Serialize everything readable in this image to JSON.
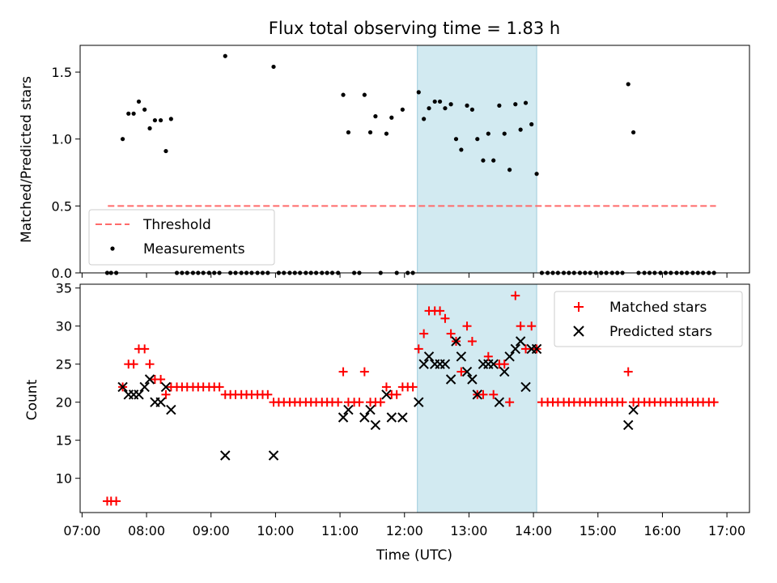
{
  "chart_data": {
    "title": "Flux total observing time = 1.83 h",
    "xlabel": "Time (UTC)",
    "x_units": "hours UTC (decimal)",
    "xlim": [
      6.97,
      17.35
    ],
    "xticks": [
      7,
      8,
      9,
      10,
      11,
      12,
      13,
      14,
      15,
      16,
      17
    ],
    "xtick_labels": [
      "07:00",
      "08:00",
      "09:00",
      "10:00",
      "11:00",
      "12:00",
      "13:00",
      "14:00",
      "15:00",
      "16:00",
      "17:00"
    ],
    "shaded_interval": [
      12.2,
      14.05
    ],
    "shade_color": "#add8e6",
    "top": {
      "type": "scatter",
      "ylabel": "Matched/Predicted stars",
      "ylim": [
        0,
        1.7
      ],
      "yticks": [
        0.0,
        0.5,
        1.0,
        1.5
      ],
      "ytick_labels": [
        "0.0",
        "0.5",
        "1.0",
        "1.5"
      ],
      "threshold": {
        "label": "Threshold",
        "y": 0.5,
        "x_range": [
          7.4,
          16.83
        ],
        "color": "#ff6b6b"
      },
      "measurements_label": "Measurements",
      "legend_position": "lower-left",
      "points": [
        [
          7.39,
          0
        ],
        [
          7.45,
          0
        ],
        [
          7.53,
          0
        ],
        [
          7.63,
          1.0
        ],
        [
          7.72,
          1.19
        ],
        [
          7.8,
          1.19
        ],
        [
          7.88,
          1.28
        ],
        [
          7.97,
          1.22
        ],
        [
          8.05,
          1.08
        ],
        [
          8.13,
          1.14
        ],
        [
          8.22,
          1.14
        ],
        [
          8.3,
          0.91
        ],
        [
          8.38,
          1.15
        ],
        [
          8.47,
          0
        ],
        [
          8.55,
          0
        ],
        [
          8.63,
          0
        ],
        [
          8.72,
          0
        ],
        [
          8.8,
          0
        ],
        [
          8.88,
          0
        ],
        [
          8.97,
          0
        ],
        [
          9.05,
          0
        ],
        [
          9.13,
          0
        ],
        [
          9.22,
          1.62
        ],
        [
          9.3,
          0
        ],
        [
          9.38,
          0
        ],
        [
          9.47,
          0
        ],
        [
          9.55,
          0
        ],
        [
          9.63,
          0
        ],
        [
          9.72,
          0
        ],
        [
          9.8,
          0
        ],
        [
          9.88,
          0
        ],
        [
          9.97,
          1.54
        ],
        [
          10.05,
          0
        ],
        [
          10.13,
          0
        ],
        [
          10.22,
          0
        ],
        [
          10.3,
          0
        ],
        [
          10.38,
          0
        ],
        [
          10.47,
          0
        ],
        [
          10.55,
          0
        ],
        [
          10.63,
          0
        ],
        [
          10.72,
          0
        ],
        [
          10.8,
          0
        ],
        [
          10.88,
          0
        ],
        [
          10.97,
          0
        ],
        [
          11.05,
          1.33
        ],
        [
          11.13,
          1.05
        ],
        [
          11.22,
          0
        ],
        [
          11.3,
          0
        ],
        [
          11.38,
          1.33
        ],
        [
          11.47,
          1.05
        ],
        [
          11.55,
          1.17
        ],
        [
          11.63,
          0
        ],
        [
          11.72,
          1.04
        ],
        [
          11.8,
          1.16
        ],
        [
          11.88,
          0
        ],
        [
          11.97,
          1.22
        ],
        [
          12.05,
          0
        ],
        [
          12.13,
          0
        ],
        [
          12.22,
          1.35
        ],
        [
          12.3,
          1.15
        ],
        [
          12.38,
          1.23
        ],
        [
          12.47,
          1.28
        ],
        [
          12.55,
          1.28
        ],
        [
          12.63,
          1.23
        ],
        [
          12.72,
          1.26
        ],
        [
          12.8,
          1.0
        ],
        [
          12.88,
          0.92
        ],
        [
          12.97,
          1.25
        ],
        [
          13.05,
          1.22
        ],
        [
          13.13,
          1.0
        ],
        [
          13.22,
          0.84
        ],
        [
          13.3,
          1.04
        ],
        [
          13.38,
          0.84
        ],
        [
          13.47,
          1.25
        ],
        [
          13.55,
          1.04
        ],
        [
          13.63,
          0.77
        ],
        [
          13.72,
          1.26
        ],
        [
          13.8,
          1.07
        ],
        [
          13.88,
          1.27
        ],
        [
          13.97,
          1.11
        ],
        [
          14.05,
          0.74
        ],
        [
          14.13,
          0
        ],
        [
          14.22,
          0
        ],
        [
          14.3,
          0
        ],
        [
          14.38,
          0
        ],
        [
          14.47,
          0
        ],
        [
          14.55,
          0
        ],
        [
          14.63,
          0
        ],
        [
          14.72,
          0
        ],
        [
          14.8,
          0
        ],
        [
          14.88,
          0
        ],
        [
          14.97,
          0
        ],
        [
          15.05,
          0
        ],
        [
          15.13,
          0
        ],
        [
          15.22,
          0
        ],
        [
          15.3,
          0
        ],
        [
          15.38,
          0
        ],
        [
          15.47,
          1.41
        ],
        [
          15.55,
          1.05
        ],
        [
          15.63,
          0
        ],
        [
          15.72,
          0
        ],
        [
          15.8,
          0
        ],
        [
          15.88,
          0
        ],
        [
          15.97,
          0
        ],
        [
          16.05,
          0
        ],
        [
          16.13,
          0
        ],
        [
          16.22,
          0
        ],
        [
          16.3,
          0
        ],
        [
          16.38,
          0
        ],
        [
          16.47,
          0
        ],
        [
          16.55,
          0
        ],
        [
          16.63,
          0
        ],
        [
          16.72,
          0
        ],
        [
          16.8,
          0
        ]
      ]
    },
    "bottom": {
      "type": "scatter",
      "ylabel": "Count",
      "ylim": [
        5.5,
        35.5
      ],
      "yticks": [
        10,
        15,
        20,
        25,
        30,
        35
      ],
      "ytick_labels": [
        "10",
        "15",
        "20",
        "25",
        "30",
        "35"
      ],
      "legend_position": "top-right",
      "series": [
        {
          "name": "Matched stars",
          "marker": "+",
          "color": "#ff0000",
          "points": [
            [
              7.39,
              7
            ],
            [
              7.45,
              7
            ],
            [
              7.53,
              7
            ],
            [
              7.63,
              22
            ],
            [
              7.72,
              25
            ],
            [
              7.8,
              25
            ],
            [
              7.88,
              27
            ],
            [
              7.97,
              27
            ],
            [
              8.05,
              25
            ],
            [
              8.13,
              23
            ],
            [
              8.22,
              23
            ],
            [
              8.3,
              21
            ],
            [
              8.38,
              22
            ],
            [
              8.47,
              22
            ],
            [
              8.55,
              22
            ],
            [
              8.63,
              22
            ],
            [
              8.72,
              22
            ],
            [
              8.8,
              22
            ],
            [
              8.88,
              22
            ],
            [
              8.97,
              22
            ],
            [
              9.05,
              22
            ],
            [
              9.13,
              22
            ],
            [
              9.22,
              21
            ],
            [
              9.3,
              21
            ],
            [
              9.38,
              21
            ],
            [
              9.47,
              21
            ],
            [
              9.55,
              21
            ],
            [
              9.63,
              21
            ],
            [
              9.72,
              21
            ],
            [
              9.8,
              21
            ],
            [
              9.88,
              21
            ],
            [
              9.97,
              20
            ],
            [
              10.05,
              20
            ],
            [
              10.13,
              20
            ],
            [
              10.22,
              20
            ],
            [
              10.3,
              20
            ],
            [
              10.38,
              20
            ],
            [
              10.47,
              20
            ],
            [
              10.55,
              20
            ],
            [
              10.63,
              20
            ],
            [
              10.72,
              20
            ],
            [
              10.8,
              20
            ],
            [
              10.88,
              20
            ],
            [
              10.97,
              20
            ],
            [
              11.05,
              24
            ],
            [
              11.13,
              20
            ],
            [
              11.22,
              20
            ],
            [
              11.3,
              20
            ],
            [
              11.38,
              24
            ],
            [
              11.47,
              20
            ],
            [
              11.55,
              20
            ],
            [
              11.63,
              20
            ],
            [
              11.72,
              22
            ],
            [
              11.8,
              21
            ],
            [
              11.88,
              21
            ],
            [
              11.97,
              22
            ],
            [
              12.05,
              22
            ],
            [
              12.13,
              22
            ],
            [
              12.22,
              27
            ],
            [
              12.3,
              29
            ],
            [
              12.38,
              32
            ],
            [
              12.47,
              32
            ],
            [
              12.55,
              32
            ],
            [
              12.63,
              31
            ],
            [
              12.72,
              29
            ],
            [
              12.8,
              28
            ],
            [
              12.88,
              24
            ],
            [
              12.97,
              30
            ],
            [
              13.05,
              28
            ],
            [
              13.13,
              21
            ],
            [
              13.22,
              21
            ],
            [
              13.3,
              26
            ],
            [
              13.38,
              21
            ],
            [
              13.47,
              25
            ],
            [
              13.55,
              25
            ],
            [
              13.63,
              20
            ],
            [
              13.72,
              34
            ],
            [
              13.8,
              30
            ],
            [
              13.88,
              27
            ],
            [
              13.97,
              30
            ],
            [
              14.05,
              27
            ],
            [
              14.13,
              20
            ],
            [
              14.22,
              20
            ],
            [
              14.3,
              20
            ],
            [
              14.38,
              20
            ],
            [
              14.47,
              20
            ],
            [
              14.55,
              20
            ],
            [
              14.63,
              20
            ],
            [
              14.72,
              20
            ],
            [
              14.8,
              20
            ],
            [
              14.88,
              20
            ],
            [
              14.97,
              20
            ],
            [
              15.05,
              20
            ],
            [
              15.13,
              20
            ],
            [
              15.22,
              20
            ],
            [
              15.3,
              20
            ],
            [
              15.38,
              20
            ],
            [
              15.47,
              24
            ],
            [
              15.55,
              20
            ],
            [
              15.63,
              20
            ],
            [
              15.72,
              20
            ],
            [
              15.8,
              20
            ],
            [
              15.88,
              20
            ],
            [
              15.97,
              20
            ],
            [
              16.05,
              20
            ],
            [
              16.13,
              20
            ],
            [
              16.22,
              20
            ],
            [
              16.3,
              20
            ],
            [
              16.38,
              20
            ],
            [
              16.47,
              20
            ],
            [
              16.55,
              20
            ],
            [
              16.63,
              20
            ],
            [
              16.72,
              20
            ],
            [
              16.8,
              20
            ]
          ]
        },
        {
          "name": "Predicted stars",
          "marker": "x",
          "color": "#000000",
          "points": [
            [
              7.63,
              22
            ],
            [
              7.72,
              21
            ],
            [
              7.8,
              21
            ],
            [
              7.88,
              21
            ],
            [
              7.97,
              22
            ],
            [
              8.05,
              23
            ],
            [
              8.13,
              20
            ],
            [
              8.22,
              20
            ],
            [
              8.3,
              22
            ],
            [
              8.38,
              19
            ],
            [
              9.22,
              13
            ],
            [
              9.97,
              13
            ],
            [
              11.05,
              18
            ],
            [
              11.13,
              19
            ],
            [
              11.38,
              18
            ],
            [
              11.47,
              19
            ],
            [
              11.55,
              17
            ],
            [
              11.72,
              21
            ],
            [
              11.8,
              18
            ],
            [
              11.97,
              18
            ],
            [
              12.22,
              20
            ],
            [
              12.3,
              25
            ],
            [
              12.38,
              26
            ],
            [
              12.47,
              25
            ],
            [
              12.55,
              25
            ],
            [
              12.63,
              25
            ],
            [
              12.72,
              23
            ],
            [
              12.8,
              28
            ],
            [
              12.88,
              26
            ],
            [
              12.97,
              24
            ],
            [
              13.05,
              23
            ],
            [
              13.13,
              21
            ],
            [
              13.22,
              25
            ],
            [
              13.3,
              25
            ],
            [
              13.38,
              25
            ],
            [
              13.47,
              20
            ],
            [
              13.55,
              24
            ],
            [
              13.63,
              26
            ],
            [
              13.72,
              27
            ],
            [
              13.8,
              28
            ],
            [
              13.88,
              22
            ],
            [
              13.97,
              27
            ],
            [
              14.05,
              27
            ],
            [
              15.47,
              17
            ],
            [
              15.55,
              19
            ]
          ]
        }
      ]
    }
  }
}
